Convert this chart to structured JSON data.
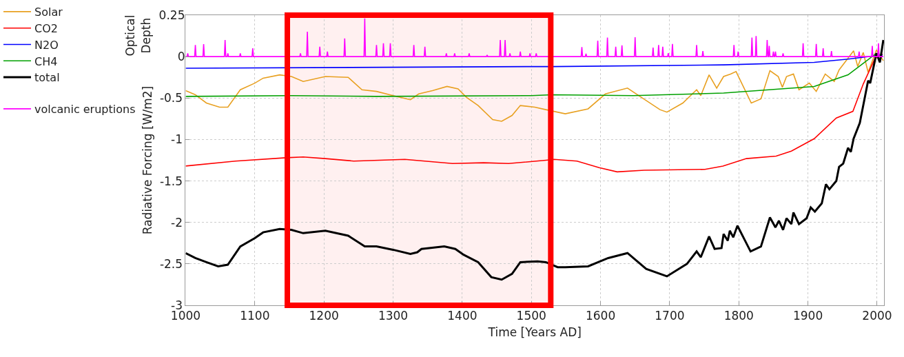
{
  "chart_data": {
    "type": "line",
    "xlabel": "Time [Years AD]",
    "ylabel": "Radiative Forcing [W/m2]",
    "annotations": [
      "Optical Depth"
    ],
    "xlim": [
      1000,
      2010
    ],
    "xticks": [
      1000,
      1100,
      1200,
      1300,
      1400,
      1500,
      1600,
      1700,
      1800,
      1900,
      2000
    ],
    "ylim": [
      -3,
      0.5
    ],
    "yticks": [
      -3,
      -2.5,
      -2,
      -1.5,
      -1,
      -0.5,
      {
        "value": 0,
        "label": null
      }
    ],
    "y2lim": [
      -1.5,
      0.25
    ],
    "y2ticks": [
      0,
      0.25
    ],
    "grid": true,
    "legend": "left",
    "line_style": "solid",
    "bands": [
      {
        "axis": "x",
        "from": 1147,
        "to": 1528,
        "color": "#ff0000"
      }
    ],
    "series": [
      {
        "name": "Solar",
        "color": "#e8a020",
        "x": [
          1000,
          1014,
          1030,
          1049,
          1061,
          1079,
          1100,
          1112,
          1136,
          1153,
          1170,
          1202,
          1235,
          1255,
          1276,
          1300,
          1325,
          1337,
          1357,
          1378,
          1394,
          1406,
          1423,
          1444,
          1457,
          1472,
          1484,
          1505,
          1521,
          1549,
          1582,
          1607,
          1639,
          1657,
          1686,
          1696,
          1719,
          1739,
          1745,
          1757,
          1768,
          1778,
          1788,
          1796,
          1807,
          1818,
          1832,
          1845,
          1857,
          1863,
          1869,
          1879,
          1887,
          1902,
          1912,
          1925,
          1938,
          1945,
          1956,
          1966,
          1972,
          1980,
          1987,
          1999,
          2009
        ],
        "values": [
          -0.41,
          -0.46,
          -0.56,
          -0.61,
          -0.61,
          -0.4,
          -0.32,
          -0.26,
          -0.22,
          -0.24,
          -0.3,
          -0.24,
          -0.25,
          -0.4,
          -0.42,
          -0.47,
          -0.52,
          -0.45,
          -0.41,
          -0.36,
          -0.39,
          -0.49,
          -0.59,
          -0.76,
          -0.78,
          -0.71,
          -0.59,
          -0.61,
          -0.64,
          -0.69,
          -0.63,
          -0.45,
          -0.38,
          -0.48,
          -0.64,
          -0.67,
          -0.56,
          -0.4,
          -0.47,
          -0.22,
          -0.38,
          -0.24,
          -0.21,
          -0.18,
          -0.37,
          -0.56,
          -0.51,
          -0.17,
          -0.24,
          -0.37,
          -0.24,
          -0.21,
          -0.4,
          -0.32,
          -0.42,
          -0.21,
          -0.3,
          -0.16,
          -0.04,
          0.07,
          -0.12,
          0.05,
          -0.19,
          0.08,
          -0.05
        ]
      },
      {
        "name": "CO2",
        "color": "#ff0000",
        "x": [
          1000,
          1072,
          1145,
          1170,
          1202,
          1243,
          1317,
          1386,
          1431,
          1467,
          1521,
          1533,
          1566,
          1598,
          1624,
          1663,
          1751,
          1777,
          1811,
          1854,
          1876,
          1909,
          1941,
          1965,
          1980,
          1997,
          2008
        ],
        "values": [
          -1.32,
          -1.26,
          -1.22,
          -1.21,
          -1.23,
          -1.26,
          -1.24,
          -1.29,
          -1.28,
          -1.29,
          -1.25,
          -1.24,
          -1.26,
          -1.34,
          -1.39,
          -1.37,
          -1.36,
          -1.32,
          -1.23,
          -1.2,
          -1.14,
          -0.99,
          -0.74,
          -0.66,
          -0.33,
          -0.02,
          0.03
        ]
      },
      {
        "name": "N2O",
        "color": "#0000ff",
        "x": [
          1000,
          1500,
          1530,
          1778,
          1909,
          1958,
          1997,
          2008
        ],
        "values": [
          -0.14,
          -0.12,
          -0.12,
          -0.1,
          -0.07,
          -0.03,
          0.01,
          0.02
        ]
      },
      {
        "name": "CH4",
        "color": "#00a000",
        "x": [
          1000,
          1153,
          1276,
          1500,
          1530,
          1647,
          1778,
          1909,
          1958,
          1980,
          1999,
          2008
        ],
        "values": [
          -0.48,
          -0.47,
          -0.48,
          -0.47,
          -0.46,
          -0.47,
          -0.44,
          -0.36,
          -0.22,
          -0.08,
          0.04,
          0.0
        ]
      },
      {
        "name": "total",
        "color": "#000000",
        "x": [
          1000,
          1014,
          1030,
          1047,
          1061,
          1079,
          1100,
          1112,
          1136,
          1153,
          1170,
          1202,
          1235,
          1259,
          1276,
          1300,
          1325,
          1335,
          1341,
          1374,
          1390,
          1402,
          1423,
          1442,
          1457,
          1472,
          1484,
          1509,
          1521,
          1538,
          1549,
          1582,
          1611,
          1639,
          1666,
          1696,
          1725,
          1739,
          1745,
          1757,
          1765,
          1775,
          1778,
          1784,
          1787,
          1792,
          1798,
          1809,
          1817,
          1832,
          1845,
          1853,
          1858,
          1864,
          1869,
          1876,
          1879,
          1887,
          1898,
          1904,
          1910,
          1920,
          1926,
          1931,
          1941,
          1945,
          1951,
          1958,
          1962,
          1966,
          1975,
          1987,
          1990,
          1999,
          2004,
          2009
        ],
        "values": [
          -2.37,
          -2.43,
          -2.48,
          -2.53,
          -2.51,
          -2.29,
          -2.19,
          -2.12,
          -2.08,
          -2.09,
          -2.13,
          -2.1,
          -2.16,
          -2.29,
          -2.29,
          -2.33,
          -2.38,
          -2.36,
          -2.32,
          -2.29,
          -2.32,
          -2.39,
          -2.48,
          -2.66,
          -2.69,
          -2.62,
          -2.48,
          -2.47,
          -2.48,
          -2.54,
          -2.54,
          -2.53,
          -2.43,
          -2.37,
          -2.56,
          -2.65,
          -2.5,
          -2.35,
          -2.42,
          -2.17,
          -2.32,
          -2.31,
          -2.14,
          -2.22,
          -2.1,
          -2.18,
          -2.04,
          -2.22,
          -2.35,
          -2.29,
          -1.94,
          -2.06,
          -1.98,
          -2.09,
          -1.95,
          -2.02,
          -1.88,
          -2.02,
          -1.95,
          -1.82,
          -1.87,
          -1.77,
          -1.54,
          -1.6,
          -1.5,
          -1.33,
          -1.29,
          -1.1,
          -1.15,
          -0.99,
          -0.8,
          -0.29,
          -0.32,
          0.04,
          -0.07,
          0.2
        ]
      },
      {
        "name": "volcanic eruptions",
        "color": "#ff00ff",
        "axis": "y2",
        "x": [
          1000,
          1002,
          1003,
          1004,
          1013,
          1014,
          1015,
          1025,
          1026,
          1027,
          1056,
          1057,
          1058,
          1060,
          1061,
          1062,
          1078,
          1079,
          1080,
          1096,
          1097,
          1098,
          1165,
          1166,
          1167,
          1175,
          1176,
          1177,
          1193,
          1194,
          1195,
          1204,
          1205,
          1206,
          1229,
          1230,
          1231,
          1258,
          1259,
          1260,
          1275,
          1276,
          1277,
          1285,
          1286,
          1287,
          1295,
          1296,
          1297,
          1329,
          1330,
          1331,
          1345,
          1346,
          1347,
          1376,
          1377,
          1378,
          1388,
          1389,
          1390,
          1409,
          1410,
          1411,
          1435,
          1436,
          1437,
          1454,
          1455,
          1456,
          1461,
          1462,
          1463,
          1468,
          1469,
          1470,
          1483,
          1484,
          1485,
          1497,
          1498,
          1499,
          1506,
          1507,
          1508,
          1572,
          1573,
          1574,
          1578,
          1579,
          1580,
          1595,
          1596,
          1597,
          1609,
          1610,
          1611,
          1621,
          1622,
          1623,
          1630,
          1631,
          1632,
          1649,
          1650,
          1651,
          1675,
          1676,
          1677,
          1683,
          1684,
          1685,
          1689,
          1690,
          1691,
          1697,
          1698,
          1699,
          1703,
          1704,
          1705,
          1738,
          1739,
          1740,
          1747,
          1748,
          1749,
          1792,
          1793,
          1794,
          1798,
          1799,
          1800,
          1818,
          1819,
          1820,
          1824,
          1825,
          1826,
          1840,
          1841,
          1842,
          1843,
          1844,
          1845,
          1849,
          1850,
          1851,
          1852,
          1853,
          1854,
          1863,
          1864,
          1865,
          1892,
          1893,
          1894,
          1911,
          1912,
          1913,
          1921,
          1922,
          1923,
          1933,
          1934,
          1935,
          1973,
          1974,
          1975,
          1992,
          1993,
          1994,
          2001,
          2002,
          2003,
          2009
        ],
        "values": [
          0,
          0,
          0.02,
          0,
          0,
          0.07,
          0,
          0,
          0.075,
          0,
          0,
          0.1,
          0,
          0,
          0.02,
          0,
          0,
          0.02,
          0,
          0,
          0.05,
          0,
          0,
          0.02,
          0,
          0,
          0.15,
          0,
          0,
          0.06,
          0,
          0,
          0.03,
          0,
          0,
          0.11,
          0,
          0,
          0.23,
          0,
          0,
          0.07,
          0,
          0,
          0.08,
          0,
          0,
          0.08,
          0,
          0,
          0.07,
          0,
          0,
          0.06,
          0,
          0,
          0.02,
          0,
          0,
          0.02,
          0,
          0,
          0.02,
          0,
          0,
          0.01,
          0,
          0,
          0.1,
          0,
          0,
          0.1,
          0,
          0,
          0.02,
          0,
          0,
          0.03,
          0,
          0,
          0.02,
          0,
          0,
          0.02,
          0,
          0,
          0.058,
          0,
          0,
          0.017,
          0,
          0,
          0.096,
          0,
          0,
          0.115,
          0,
          0,
          0.06,
          0,
          0,
          0.068,
          0,
          0,
          0.117,
          0,
          0,
          0.054,
          0,
          0,
          0.07,
          0,
          0,
          0.06,
          0,
          0,
          0.021,
          0,
          0,
          0.076,
          0,
          0,
          0.07,
          0,
          0,
          0.033,
          0,
          0,
          0.07,
          0,
          0,
          0.03,
          0,
          0,
          0.115,
          0,
          0,
          0.124,
          0,
          0,
          0.1,
          0,
          0,
          0.065,
          0,
          0,
          0.03,
          0,
          0,
          0.03,
          0,
          0,
          0.02,
          0,
          0,
          0.08,
          0,
          0,
          0.076,
          0,
          0,
          0.05,
          0,
          0,
          0.033,
          0,
          0,
          0.03,
          0,
          0,
          0.065,
          0,
          0,
          0.08,
          0,
          0
        ]
      }
    ]
  }
}
